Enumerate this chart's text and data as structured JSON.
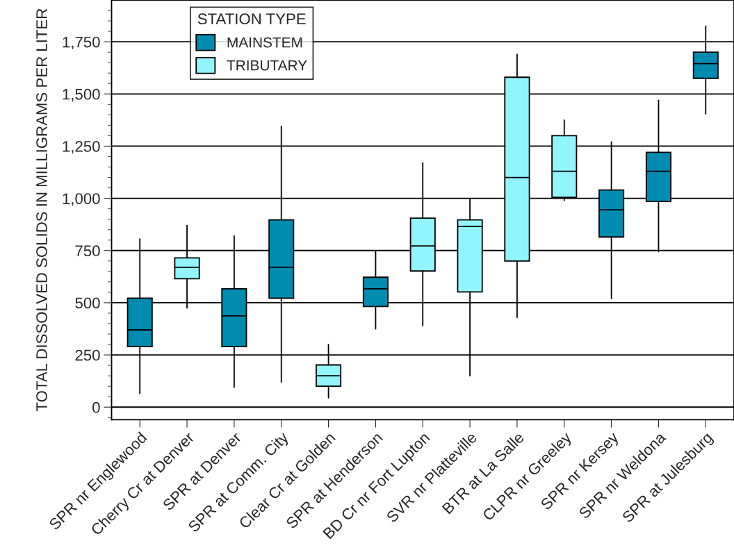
{
  "chart_data": {
    "type": "box",
    "ylabel": "TOTAL DISSOLVED SOLIDS IN MILLIGRAMS PER LITER",
    "legend_title": "STATION TYPE",
    "legend": "top left",
    "grid": "y",
    "categories": [
      "SPR nr Englewood",
      "Cherry Cr at Denver",
      "SPR at Denver",
      "SPR at Comm. City",
      "Clear Cr at Golden",
      "SPR at Henderson",
      "BD Cr nr Fort Lupton",
      "SVR nr Platteville",
      "BTR at La Salle",
      "CLPR nr Greeley",
      "SPR nr Kersey",
      "SPR nr Weldona",
      "SPR at Julesburg"
    ],
    "ylim": [
      -60,
      1950
    ],
    "yticks": [
      {
        "value": -50,
        "label": null
      },
      0,
      {
        "value": 50,
        "label": null
      },
      {
        "value": 100,
        "label": null
      },
      {
        "value": 150,
        "label": null
      },
      {
        "value": 200,
        "label": null
      },
      250,
      {
        "value": 300,
        "label": null
      },
      {
        "value": 350,
        "label": null
      },
      {
        "value": 400,
        "label": null
      },
      {
        "value": 450,
        "label": null
      },
      500,
      {
        "value": 550,
        "label": null
      },
      {
        "value": 600,
        "label": null
      },
      {
        "value": 650,
        "label": null
      },
      {
        "value": 700,
        "label": null
      },
      750,
      {
        "value": 800,
        "label": null
      },
      {
        "value": 850,
        "label": null
      },
      {
        "value": 900,
        "label": null
      },
      {
        "value": 950,
        "label": null
      },
      {
        "value": 1000,
        "label": "1,000"
      },
      {
        "value": 1050,
        "label": null
      },
      {
        "value": 1100,
        "label": null
      },
      {
        "value": 1150,
        "label": null
      },
      {
        "value": 1200,
        "label": null
      },
      {
        "value": 1250,
        "label": "1,250"
      },
      {
        "value": 1300,
        "label": null
      },
      {
        "value": 1350,
        "label": null
      },
      {
        "value": 1400,
        "label": null
      },
      {
        "value": 1450,
        "label": null
      },
      {
        "value": 1500,
        "label": "1,500"
      },
      {
        "value": 1550,
        "label": null
      },
      {
        "value": 1600,
        "label": null
      },
      {
        "value": 1650,
        "label": null
      },
      {
        "value": 1700,
        "label": null
      },
      {
        "value": 1750,
        "label": "1,750"
      },
      {
        "value": 1800,
        "label": null
      },
      {
        "value": 1850,
        "label": null
      },
      {
        "value": 1900,
        "label": null
      }
    ],
    "series": [
      {
        "name": "MAINSTEM",
        "color": "#008bb0",
        "boxes": [
          {
            "low": 65,
            "q1": 290,
            "median": 370,
            "q3": 522,
            "high": 805
          },
          null,
          {
            "low": 95,
            "q1": 290,
            "median": 437,
            "q3": 567,
            "high": 820
          },
          {
            "low": 120,
            "q1": 522,
            "median": 670,
            "q3": 897,
            "high": 1345
          },
          null,
          {
            "low": 375,
            "q1": 482,
            "median": 567,
            "q3": 622,
            "high": 750
          },
          null,
          null,
          null,
          null,
          {
            "low": 520,
            "q1": 815,
            "median": 945,
            "q3": 1040,
            "high": 1270
          },
          {
            "low": 745,
            "q1": 985,
            "median": 1130,
            "q3": 1220,
            "high": 1470
          },
          {
            "low": 1405,
            "q1": 1575,
            "median": 1645,
            "q3": 1700,
            "high": 1825
          }
        ]
      },
      {
        "name": "TRIBUTARY",
        "color": "#92f5fd",
        "boxes": [
          null,
          {
            "low": 475,
            "q1": 615,
            "median": 670,
            "q3": 715,
            "high": 870
          },
          null,
          null,
          {
            "low": 45,
            "q1": 100,
            "median": 150,
            "q3": 202,
            "high": 300
          },
          null,
          {
            "low": 390,
            "q1": 652,
            "median": 772,
            "q3": 905,
            "high": 1170
          },
          {
            "low": 150,
            "q1": 552,
            "median": 865,
            "q3": 897,
            "high": 1000
          },
          {
            "low": 430,
            "q1": 700,
            "median": 1100,
            "q3": 1580,
            "high": 1690
          },
          {
            "low": 990,
            "q1": 1005,
            "median": 1130,
            "q3": 1300,
            "high": 1375
          },
          null,
          null,
          null
        ]
      }
    ]
  }
}
